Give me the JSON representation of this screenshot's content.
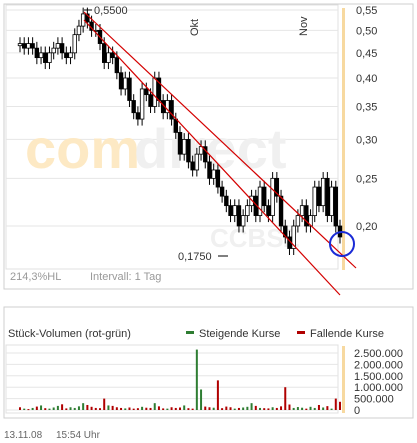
{
  "watermark": {
    "brand_accent": "com",
    "brand_rest": "direct",
    "sub": "CCBSZ"
  },
  "price_chart": {
    "high_label": "0,5500",
    "low_label": "0,1750",
    "volatility": "214,3%HL",
    "interval": "Intervall: 1 Tag",
    "month_labels": [
      "Okt",
      "Nov"
    ],
    "y_ticks": [
      "0,55",
      "0,50",
      "0,45",
      "0,40",
      "0,35",
      "0,30",
      "0,25",
      "0,20"
    ]
  },
  "volume_chart": {
    "title": "Stück-Volumen (rot-grün)",
    "legend_up": "Steigende Kurse",
    "legend_down": "Fallende Kurse",
    "y_ticks": [
      "2.500.000",
      "2.000.000",
      "1.500.000",
      "1.000.000",
      "500.000",
      "0"
    ]
  },
  "footer": {
    "date": "13.11.08",
    "time": "15:54 Uhr"
  },
  "colors": {
    "up": "#2e7d32",
    "down": "#b00000",
    "trend": "#d40000",
    "highlight": "#1a2bd6",
    "today": "#f7d9a0",
    "grid": "#e6e6e6"
  },
  "chart_data": [
    {
      "type": "candlestick",
      "title": "",
      "y_scale": "log",
      "ylim": [
        0.16,
        0.57
      ],
      "y_ticks": [
        0.55,
        0.5,
        0.45,
        0.4,
        0.35,
        0.3,
        0.25,
        0.2
      ],
      "annotations": [
        {
          "label": "0,5500",
          "value": 0.55
        },
        {
          "label": "0,1750",
          "value": 0.175
        }
      ],
      "close": [
        0.47,
        0.46,
        0.47,
        0.46,
        0.44,
        0.45,
        0.43,
        0.45,
        0.46,
        0.47,
        0.45,
        0.44,
        0.45,
        0.49,
        0.51,
        0.54,
        0.52,
        0.5,
        0.5,
        0.47,
        0.43,
        0.45,
        0.44,
        0.41,
        0.38,
        0.4,
        0.36,
        0.34,
        0.33,
        0.38,
        0.37,
        0.35,
        0.4,
        0.36,
        0.34,
        0.36,
        0.33,
        0.31,
        0.28,
        0.3,
        0.27,
        0.26,
        0.28,
        0.29,
        0.27,
        0.25,
        0.26,
        0.24,
        0.23,
        0.22,
        0.21,
        0.22,
        0.2,
        0.21,
        0.22,
        0.23,
        0.21,
        0.24,
        0.22,
        0.21,
        0.25,
        0.23,
        0.2,
        0.19,
        0.18,
        0.2,
        0.21,
        0.22,
        0.2,
        0.21,
        0.24,
        0.22,
        0.25,
        0.21,
        0.24,
        0.2,
        0.19
      ]
    },
    {
      "type": "bar",
      "title": "Stück-Volumen (rot-grün)",
      "ylim": [
        0,
        2600000
      ],
      "y_ticks": [
        2500000,
        2000000,
        1500000,
        1000000,
        500000,
        0
      ],
      "series": [
        {
          "name": "Steigende Kurse",
          "color": "#2e7d32"
        },
        {
          "name": "Fallende Kurse",
          "color": "#b00000"
        }
      ],
      "values": [
        120000,
        60000,
        40000,
        90000,
        150000,
        200000,
        80000,
        60000,
        110000,
        180000,
        250000,
        70000,
        120000,
        90000,
        160000,
        300000,
        220000,
        140000,
        90000,
        80000,
        500000,
        200000,
        180000,
        120000,
        90000,
        70000,
        110000,
        60000,
        80000,
        140000,
        100000,
        90000,
        300000,
        160000,
        70000,
        60000,
        120000,
        90000,
        110000,
        200000,
        80000,
        60000,
        2700000,
        900000,
        150000,
        120000,
        100000,
        1300000,
        80000,
        150000,
        120000,
        60000,
        90000,
        110000,
        140000,
        300000,
        180000,
        90000,
        80000,
        70000,
        120000,
        90000,
        160000,
        1000000,
        240000,
        90000,
        130000,
        100000,
        60000,
        140000,
        90000,
        220000,
        110000,
        170000,
        60000,
        500000,
        360000
      ],
      "direction": [
        "d",
        "u",
        "d",
        "u",
        "d",
        "u",
        "d",
        "u",
        "u",
        "u",
        "d",
        "d",
        "u",
        "u",
        "u",
        "u",
        "d",
        "d",
        "d",
        "d",
        "d",
        "u",
        "d",
        "d",
        "d",
        "u",
        "d",
        "d",
        "d",
        "u",
        "d",
        "d",
        "u",
        "d",
        "d",
        "u",
        "d",
        "d",
        "d",
        "u",
        "d",
        "d",
        "u",
        "u",
        "d",
        "d",
        "u",
        "d",
        "d",
        "d",
        "d",
        "u",
        "d",
        "u",
        "u",
        "u",
        "d",
        "u",
        "d",
        "d",
        "u",
        "d",
        "d",
        "d",
        "d",
        "u",
        "u",
        "u",
        "d",
        "u",
        "u",
        "d",
        "u",
        "d",
        "u",
        "d",
        "d"
      ]
    }
  ]
}
